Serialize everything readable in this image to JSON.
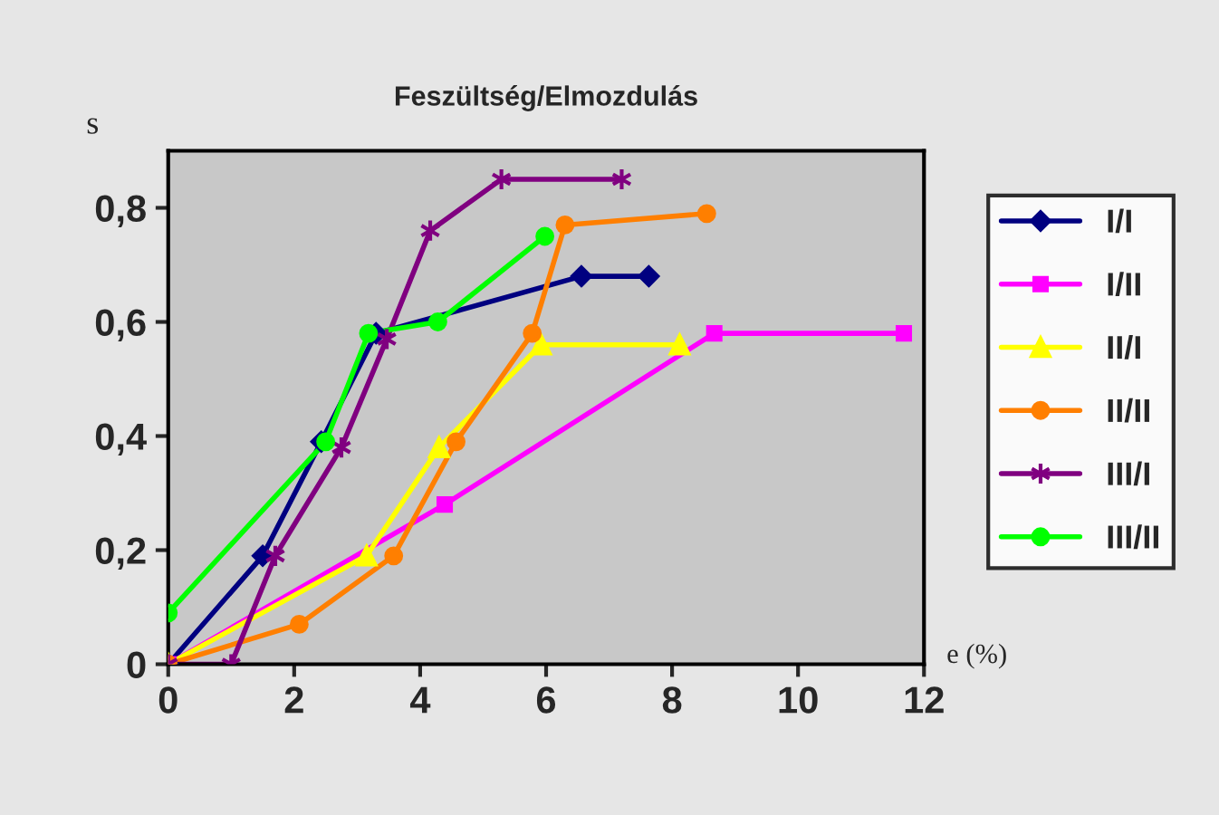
{
  "chart_data": {
    "type": "line",
    "title": "Feszültség/Elmozdulás",
    "xlabel": "e (%)",
    "ylabel": "s",
    "xlim": [
      0,
      12
    ],
    "xticks": [
      0,
      2,
      4,
      6,
      8,
      10,
      12
    ],
    "ylim": [
      0,
      0.9
    ],
    "yticks": [
      {
        "value": 0,
        "label": "0"
      },
      {
        "value": 0.2,
        "label": "0,2"
      },
      {
        "value": 0.4,
        "label": "0,4"
      },
      {
        "value": 0.6,
        "label": "0,6"
      },
      {
        "value": 0.8,
        "label": "0,8"
      }
    ],
    "legend": "right",
    "series": [
      {
        "name": "I/I",
        "color": "#000080",
        "marker": "diamond",
        "x": [
          0,
          1.5,
          2.43,
          3.3,
          6.56,
          7.63
        ],
        "values": [
          0,
          0.19,
          0.39,
          0.58,
          0.68,
          0.68
        ]
      },
      {
        "name": "I/II",
        "color": "#ff00ff",
        "marker": "square",
        "x": [
          0,
          4.39,
          8.67,
          11.68
        ],
        "values": [
          0,
          0.28,
          0.58,
          0.58
        ]
      },
      {
        "name": "II/I",
        "color": "#ffff00",
        "marker": "triangle",
        "x": [
          0,
          3.15,
          4.3,
          5.92,
          8.12
        ],
        "values": [
          0,
          0.19,
          0.38,
          0.56,
          0.56
        ]
      },
      {
        "name": "II/II",
        "color": "#ff7f00",
        "marker": "circle",
        "x": [
          0,
          2.08,
          3.58,
          4.57,
          5.78,
          6.3,
          8.55
        ],
        "values": [
          0,
          0.07,
          0.19,
          0.39,
          0.58,
          0.77,
          0.79
        ]
      },
      {
        "name": "III/I",
        "color": "#800080",
        "marker": "cross",
        "x": [
          0,
          1.0,
          1.7,
          2.75,
          3.47,
          4.16,
          5.29,
          7.2
        ],
        "values": [
          0,
          0,
          0.19,
          0.38,
          0.57,
          0.76,
          0.85,
          0.85
        ]
      },
      {
        "name": "III/II",
        "color": "#00ff00",
        "marker": "circle",
        "x": [
          0,
          2.5,
          3.18,
          4.28,
          5.98
        ],
        "values": [
          0.09,
          0.39,
          0.58,
          0.6,
          0.75
        ]
      }
    ]
  }
}
